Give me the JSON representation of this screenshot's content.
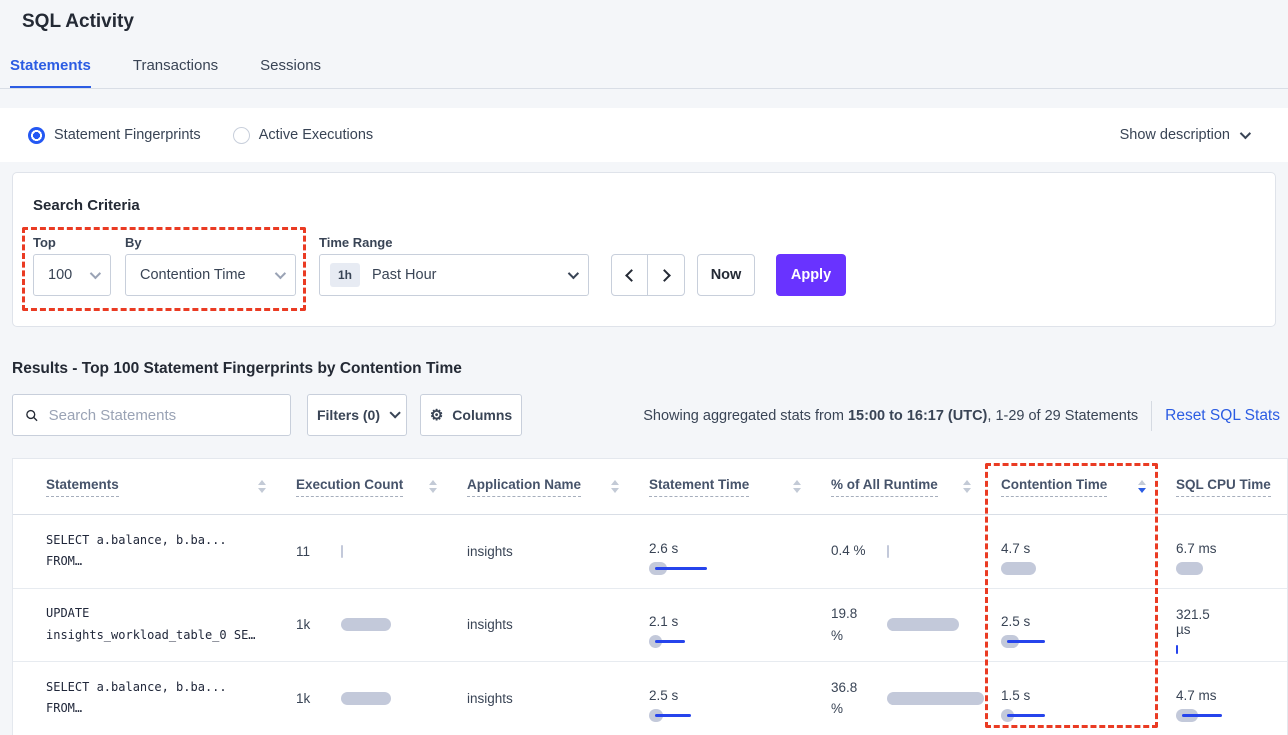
{
  "page": {
    "title": "SQL Activity"
  },
  "tabs": [
    {
      "label": "Statements",
      "active": true
    },
    {
      "label": "Transactions",
      "active": false
    },
    {
      "label": "Sessions",
      "active": false
    }
  ],
  "view_toggle": {
    "options": [
      {
        "label": "Statement Fingerprints",
        "selected": true
      },
      {
        "label": "Active Executions",
        "selected": false
      }
    ],
    "show_description_label": "Show description"
  },
  "search_criteria": {
    "heading": "Search Criteria",
    "top": {
      "label": "Top",
      "value": "100"
    },
    "by": {
      "label": "By",
      "value": "Contention Time"
    },
    "time_range": {
      "label": "Time Range",
      "badge": "1h",
      "value": "Past Hour"
    },
    "now_label": "Now",
    "apply_label": "Apply"
  },
  "results": {
    "heading": "Results - Top 100 Statement Fingerprints by Contention Time",
    "search_placeholder": "Search Statements",
    "filters_label": "Filters (0)",
    "columns_label": "Columns",
    "stats_prefix": "Showing aggregated stats from ",
    "stats_bold": "15:00 to 16:17 (UTC)",
    "stats_suffix": ", 1-29 of 29 Statements",
    "reset_label": "Reset SQL Stats"
  },
  "table": {
    "columns": [
      {
        "label": "Statements"
      },
      {
        "label": "Execution Count"
      },
      {
        "label": "Application Name"
      },
      {
        "label": "Statement Time"
      },
      {
        "label": "% of All Runtime"
      },
      {
        "label": "Contention Time",
        "sorted": "desc"
      },
      {
        "label": "SQL CPU Time"
      }
    ],
    "rows": [
      {
        "statement": [
          "SELECT a.balance, b.ba...",
          "FROM…"
        ],
        "exec": "11",
        "exec_bar": {
          "g": 2,
          "b": 0
        },
        "app": "insights",
        "stmt_time": "2.6 s",
        "stmt_bar": {
          "g": 18,
          "b": 52
        },
        "runtime": [
          "0.4 %",
          ""
        ],
        "runtime_bar": {
          "g": 2,
          "b": 0
        },
        "contention": "4.7 s",
        "contention_bar": {
          "g": 35,
          "b": 0
        },
        "cpu": [
          "6.7 ms",
          ""
        ],
        "cpu_bar": {
          "g": 27,
          "b": 0
        }
      },
      {
        "statement": [
          "UPDATE",
          "insights_workload_table_0 SE…"
        ],
        "exec": "1k",
        "exec_bar": {
          "g": 50,
          "b": 0
        },
        "app": "insights",
        "stmt_time": "2.1 s",
        "stmt_bar": {
          "g": 13,
          "b": 30
        },
        "runtime": [
          "19.8",
          "%"
        ],
        "runtime_bar": {
          "g": 72,
          "b": 0
        },
        "contention": "2.5 s",
        "contention_bar": {
          "g": 18,
          "b": 38
        },
        "cpu": [
          "321.5",
          "µs"
        ],
        "cpu_bar": {
          "g": 0,
          "b": 2,
          "bt": true
        }
      },
      {
        "statement": [
          "SELECT a.balance, b.ba...",
          "FROM…"
        ],
        "exec": "1k",
        "exec_bar": {
          "g": 50,
          "b": 0
        },
        "app": "insights",
        "stmt_time": "2.5 s",
        "stmt_bar": {
          "g": 14,
          "b": 36
        },
        "runtime": [
          "36.8",
          "%"
        ],
        "runtime_bar": {
          "g": 97,
          "b": 0
        },
        "contention": "1.5 s",
        "contention_bar": {
          "g": 13,
          "b": 38
        },
        "cpu": [
          "4.7 ms",
          ""
        ],
        "cpu_bar": {
          "g": 22,
          "b": 40
        }
      }
    ]
  },
  "annotation": {
    "color": "#ea3b23"
  },
  "colors": {
    "accent_blue": "#2b5ce3",
    "apply_purple": "#6933ff",
    "bar_gray": "#c3c9da",
    "bar_blue": "#2644ec"
  }
}
